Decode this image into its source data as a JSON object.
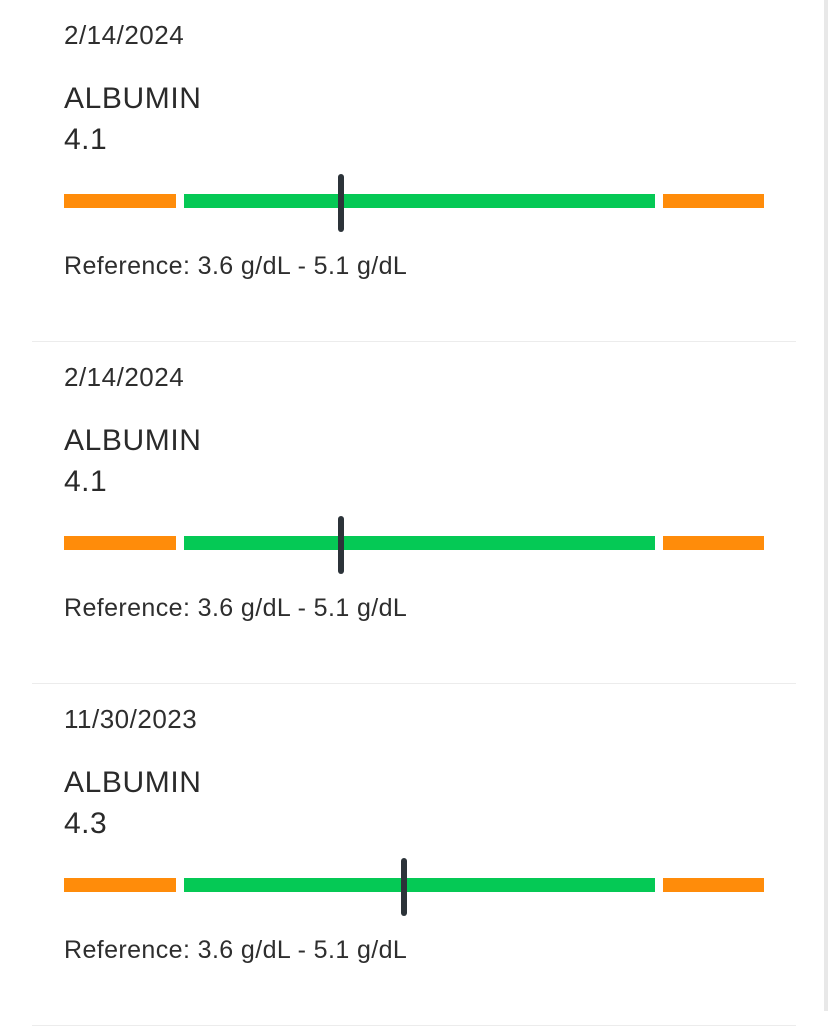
{
  "colors": {
    "out_of_range": "#FF8C0A",
    "in_range": "#05C955",
    "marker": "#2C3339"
  },
  "results": [
    {
      "date": "2/14/2024",
      "test": "ALBUMIN",
      "value": "4.1",
      "reference_text": "Reference: 3.6 g/dL - 5.1 g/dL",
      "numeric_value": 4.1,
      "ref_low": 3.6,
      "ref_high": 5.1
    },
    {
      "date": "2/14/2024",
      "test": "ALBUMIN",
      "value": "4.1",
      "reference_text": "Reference: 3.6 g/dL - 5.1 g/dL",
      "numeric_value": 4.1,
      "ref_low": 3.6,
      "ref_high": 5.1
    },
    {
      "date": "11/30/2023",
      "test": "ALBUMIN",
      "value": "4.3",
      "reference_text": "Reference: 3.6 g/dL - 5.1 g/dL",
      "numeric_value": 4.3,
      "ref_low": 3.6,
      "ref_high": 5.1
    }
  ]
}
